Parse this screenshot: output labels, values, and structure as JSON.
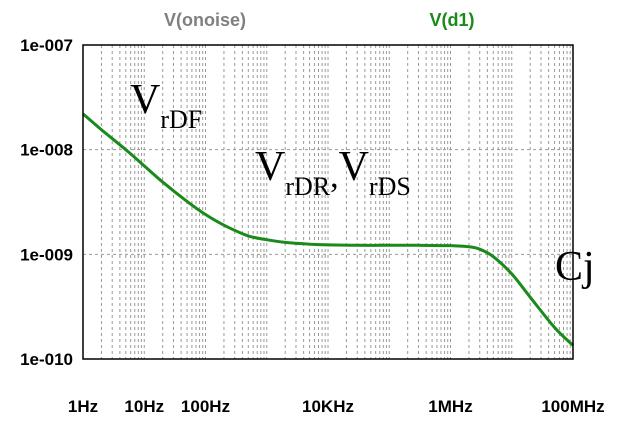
{
  "chart_data": {
    "type": "line",
    "x_scale": "log",
    "y_scale": "log",
    "xlim": [
      1,
      100000000
    ],
    "ylim": [
      1e-10,
      1e-07
    ],
    "grid": true,
    "traces": [
      {
        "name": "V(onoise)",
        "color": "#808080"
      },
      {
        "name": "V(d1)",
        "color": "#1a8a1a"
      }
    ],
    "x_ticks": [
      "1Hz",
      "10Hz",
      "100Hz",
      "10KHz",
      "1MHz",
      "100MHz"
    ],
    "x_tick_values": [
      1,
      10,
      100,
      10000,
      1000000,
      100000000
    ],
    "y_ticks": [
      "1e-007",
      "1e-008",
      "1e-009",
      "1e-010"
    ],
    "y_tick_values": [
      1e-07,
      1e-08,
      1e-09,
      1e-10
    ],
    "series": [
      {
        "color": "#1a8a1a",
        "x": [
          1,
          2,
          5,
          10,
          20,
          50,
          100,
          200,
          500,
          1000,
          2000,
          5000,
          10000,
          30000,
          100000,
          300000,
          1000000,
          2000000,
          3000000,
          5000000,
          10000000,
          20000000,
          50000000,
          100000000
        ],
        "y": [
          2.2e-08,
          1.55e-08,
          1e-08,
          7e-09,
          4.9e-09,
          3.2e-09,
          2.4e-09,
          1.9e-09,
          1.5e-09,
          1.38e-09,
          1.3e-09,
          1.25e-09,
          1.23e-09,
          1.22e-09,
          1.22e-09,
          1.22e-09,
          1.21e-09,
          1.18e-09,
          1.12e-09,
          9.5e-10,
          6.5e-10,
          3.9e-10,
          2e-10,
          1.35e-10
        ]
      }
    ],
    "annotations": {
      "vrdf": {
        "main": "V",
        "sub": "rDF"
      },
      "vrdr": {
        "main": "V",
        "sub": "rDR",
        "sep": ","
      },
      "vrds": {
        "main": "V",
        "sub": "rDS"
      },
      "cj": "Cj"
    }
  }
}
